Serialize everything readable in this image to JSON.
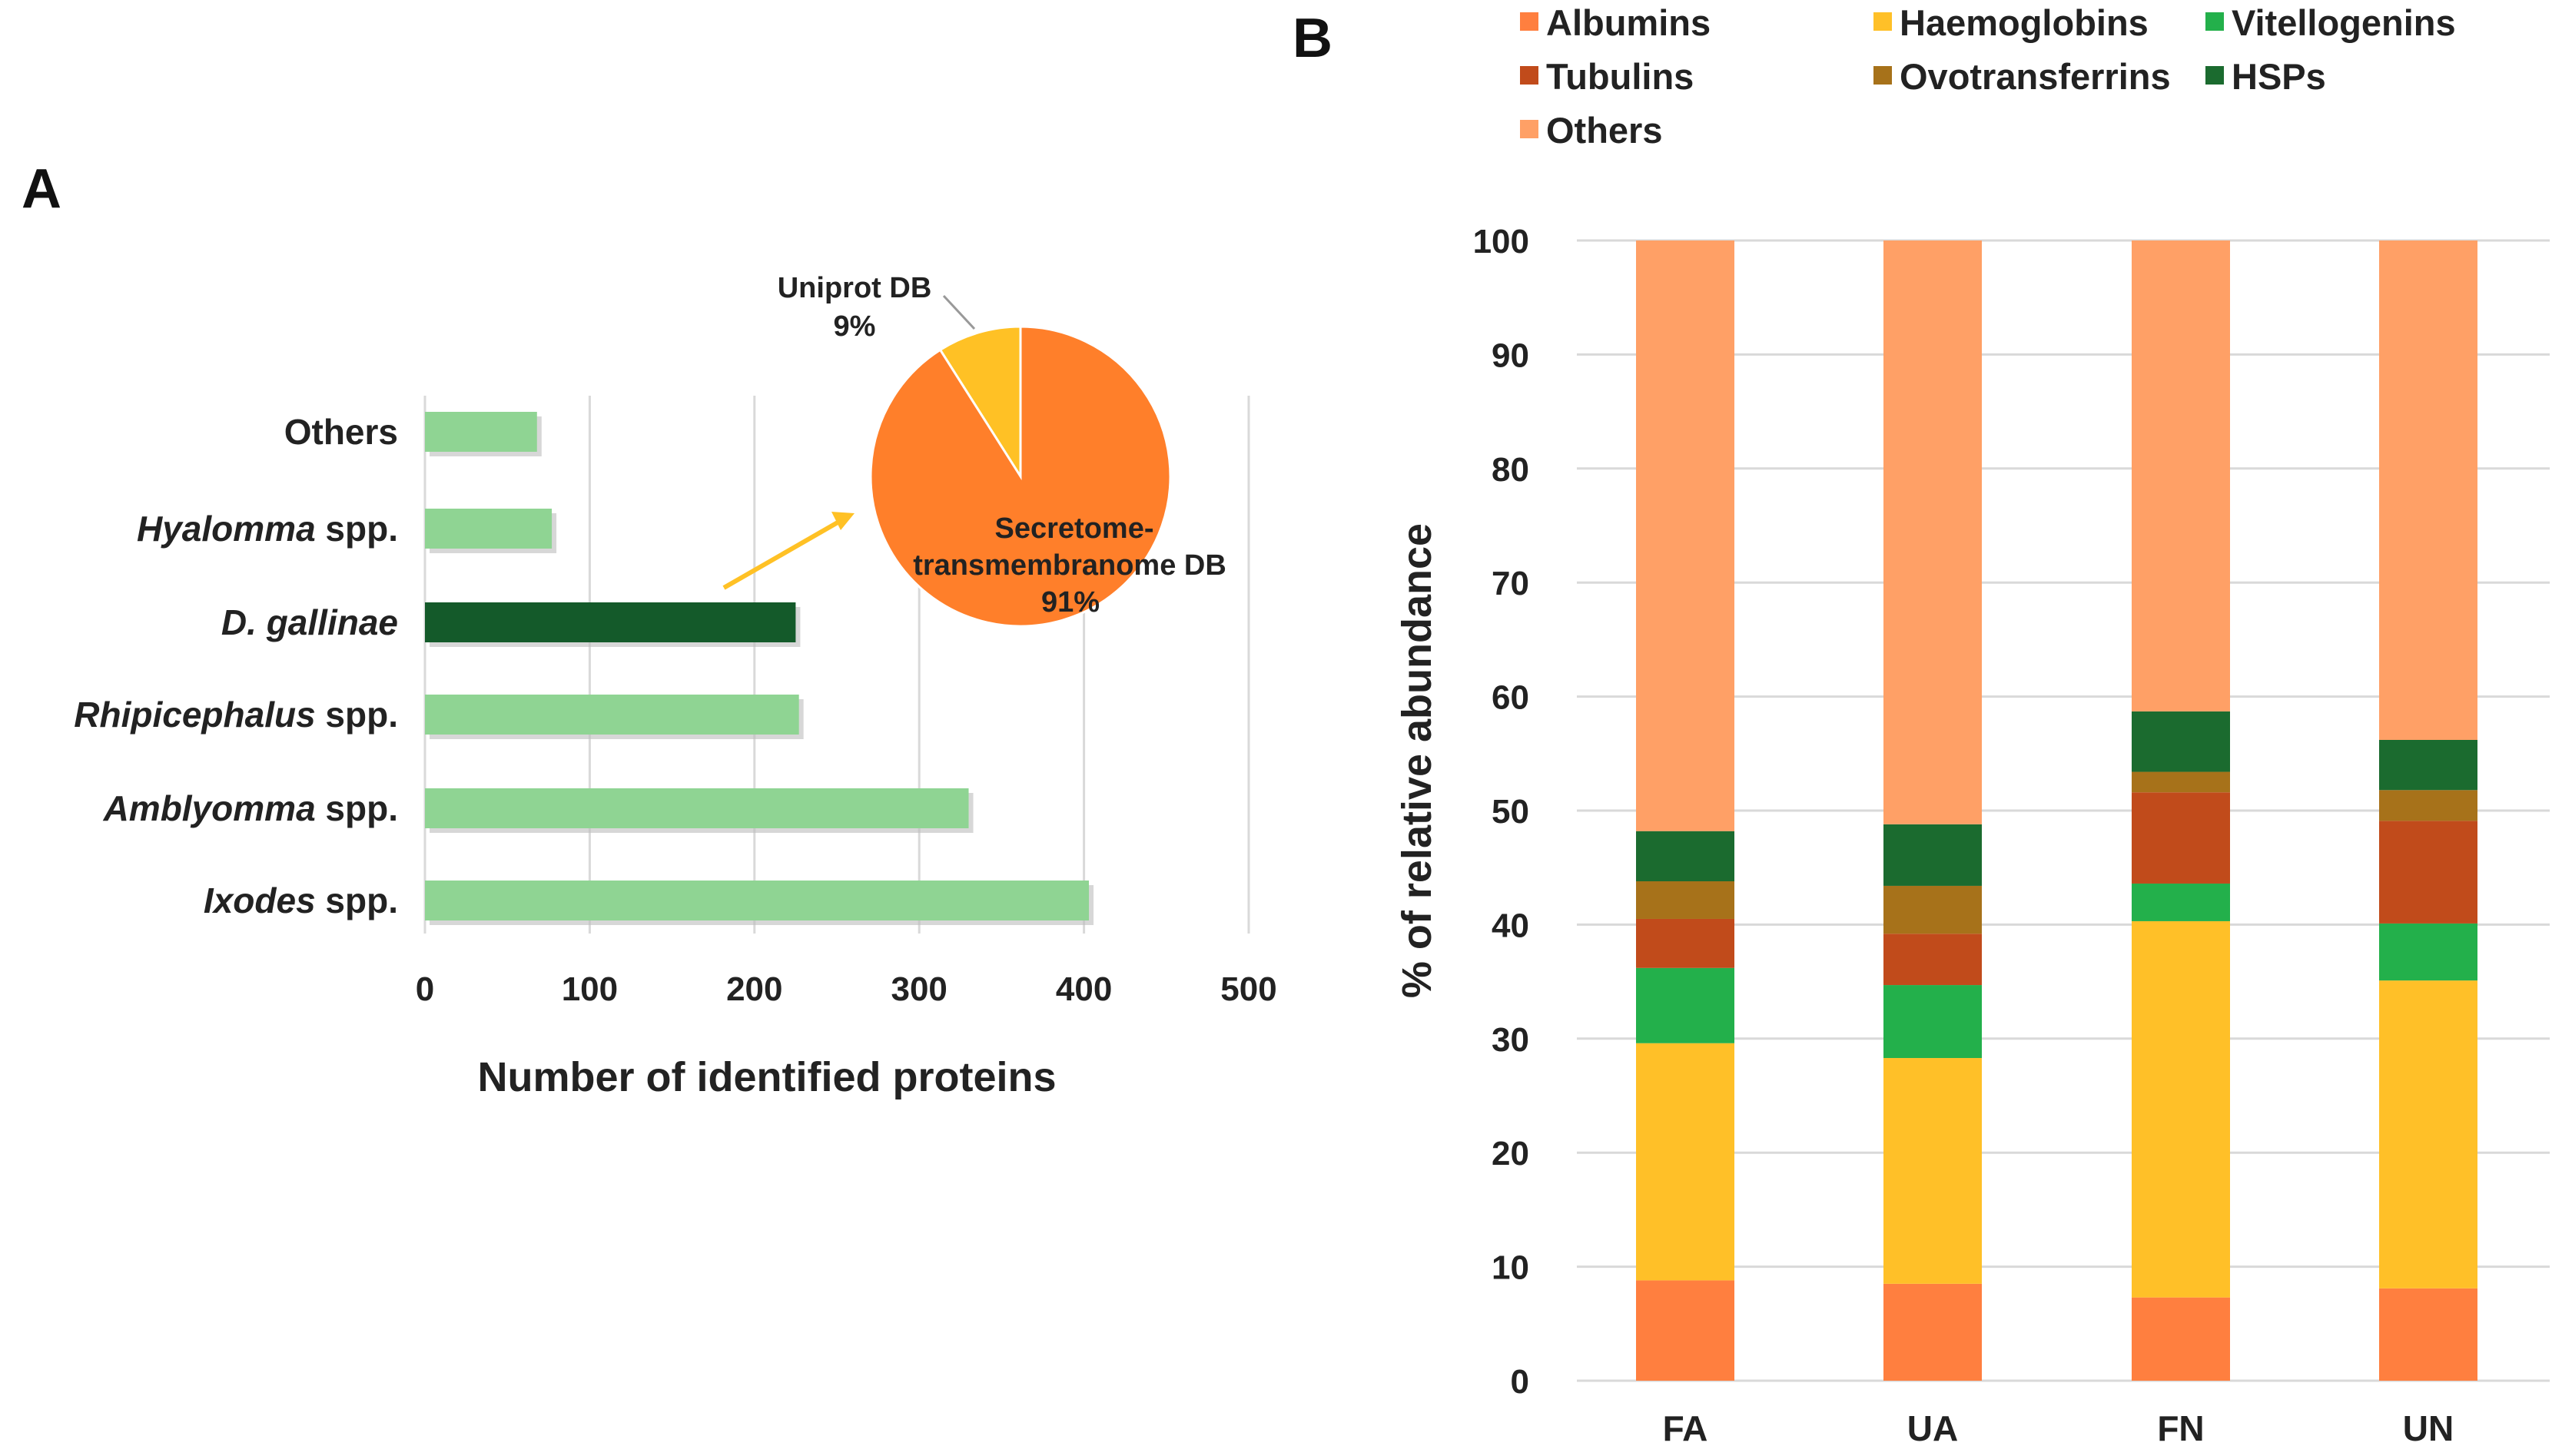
{
  "panel_a": {
    "letter": "A",
    "pie_labels": {
      "uniprot_name": "Uniprot DB",
      "uniprot_pct": "9%",
      "secretome_line1": "Secretome-",
      "secretome_line2": "transmembranome DB",
      "secretome_pct": "91%"
    }
  },
  "panel_b": {
    "letter": "B"
  },
  "chart_data": [
    {
      "type": "bar",
      "orientation": "horizontal",
      "title": "",
      "categories": [
        {
          "name": "Others",
          "italic": "",
          "suffix": ""
        },
        {
          "name": "Hyalomma",
          "italic": "Hyalomma",
          "suffix": " spp."
        },
        {
          "name": "D. gallinae",
          "italic": "D. gallinae",
          "suffix": ""
        },
        {
          "name": "Rhipicephalus",
          "italic": "Rhipicephalus",
          "suffix": " spp."
        },
        {
          "name": "Amblyomma",
          "italic": "Amblyomma",
          "suffix": " spp."
        },
        {
          "name": "Ixodes",
          "italic": "Ixodes",
          "suffix": " spp."
        }
      ],
      "values": [
        68,
        77,
        225,
        227,
        330,
        403
      ],
      "highlight_index": 2,
      "colors": {
        "bar": "#8fd493",
        "highlight": "#145a2a"
      },
      "xlabel": "Number of identified proteins",
      "xlim": [
        0,
        500
      ],
      "xticks": [
        "0",
        "100",
        "200",
        "300",
        "400",
        "500"
      ],
      "grid": "vertical"
    },
    {
      "type": "pie",
      "slices": [
        {
          "label": "Uniprot DB",
          "value": 9,
          "color": "#ffc125"
        },
        {
          "label": "Secretome-transmembranome DB",
          "value": 91,
          "color": "#ff7f2a"
        }
      ]
    },
    {
      "type": "bar",
      "stacked": true,
      "categories": [
        "FA",
        "UA",
        "FN",
        "UN"
      ],
      "ylabel": "% of relative abundance",
      "ylim": [
        0,
        100
      ],
      "yticks": [
        "0",
        "10",
        "20",
        "30",
        "40",
        "50",
        "60",
        "70",
        "80",
        "90",
        "100"
      ],
      "grid": "horizontal",
      "legend_position": "top",
      "series": [
        {
          "name": "Albumins",
          "color": "#ff7f3f",
          "values": [
            8.8,
            8.5,
            7.3,
            8.1
          ]
        },
        {
          "name": "Haemoglobins",
          "color": "#ffc028",
          "values": [
            20.8,
            19.8,
            33.0,
            27.0
          ]
        },
        {
          "name": "Vitellogenins",
          "color": "#23b04b",
          "values": [
            6.6,
            6.4,
            3.3,
            5.0
          ]
        },
        {
          "name": "Tubulins",
          "color": "#c14b1b",
          "values": [
            4.3,
            4.5,
            8.0,
            9.0
          ]
        },
        {
          "name": "Ovotransferrins",
          "color": "#a7721a",
          "values": [
            3.3,
            4.2,
            1.8,
            2.7
          ]
        },
        {
          "name": "HSPs",
          "color": "#1b6b2f",
          "values": [
            4.4,
            5.4,
            5.3,
            4.4
          ]
        },
        {
          "name": "Others",
          "color": "#ffa066",
          "values": [
            51.8,
            51.2,
            41.3,
            43.8
          ]
        }
      ]
    }
  ]
}
